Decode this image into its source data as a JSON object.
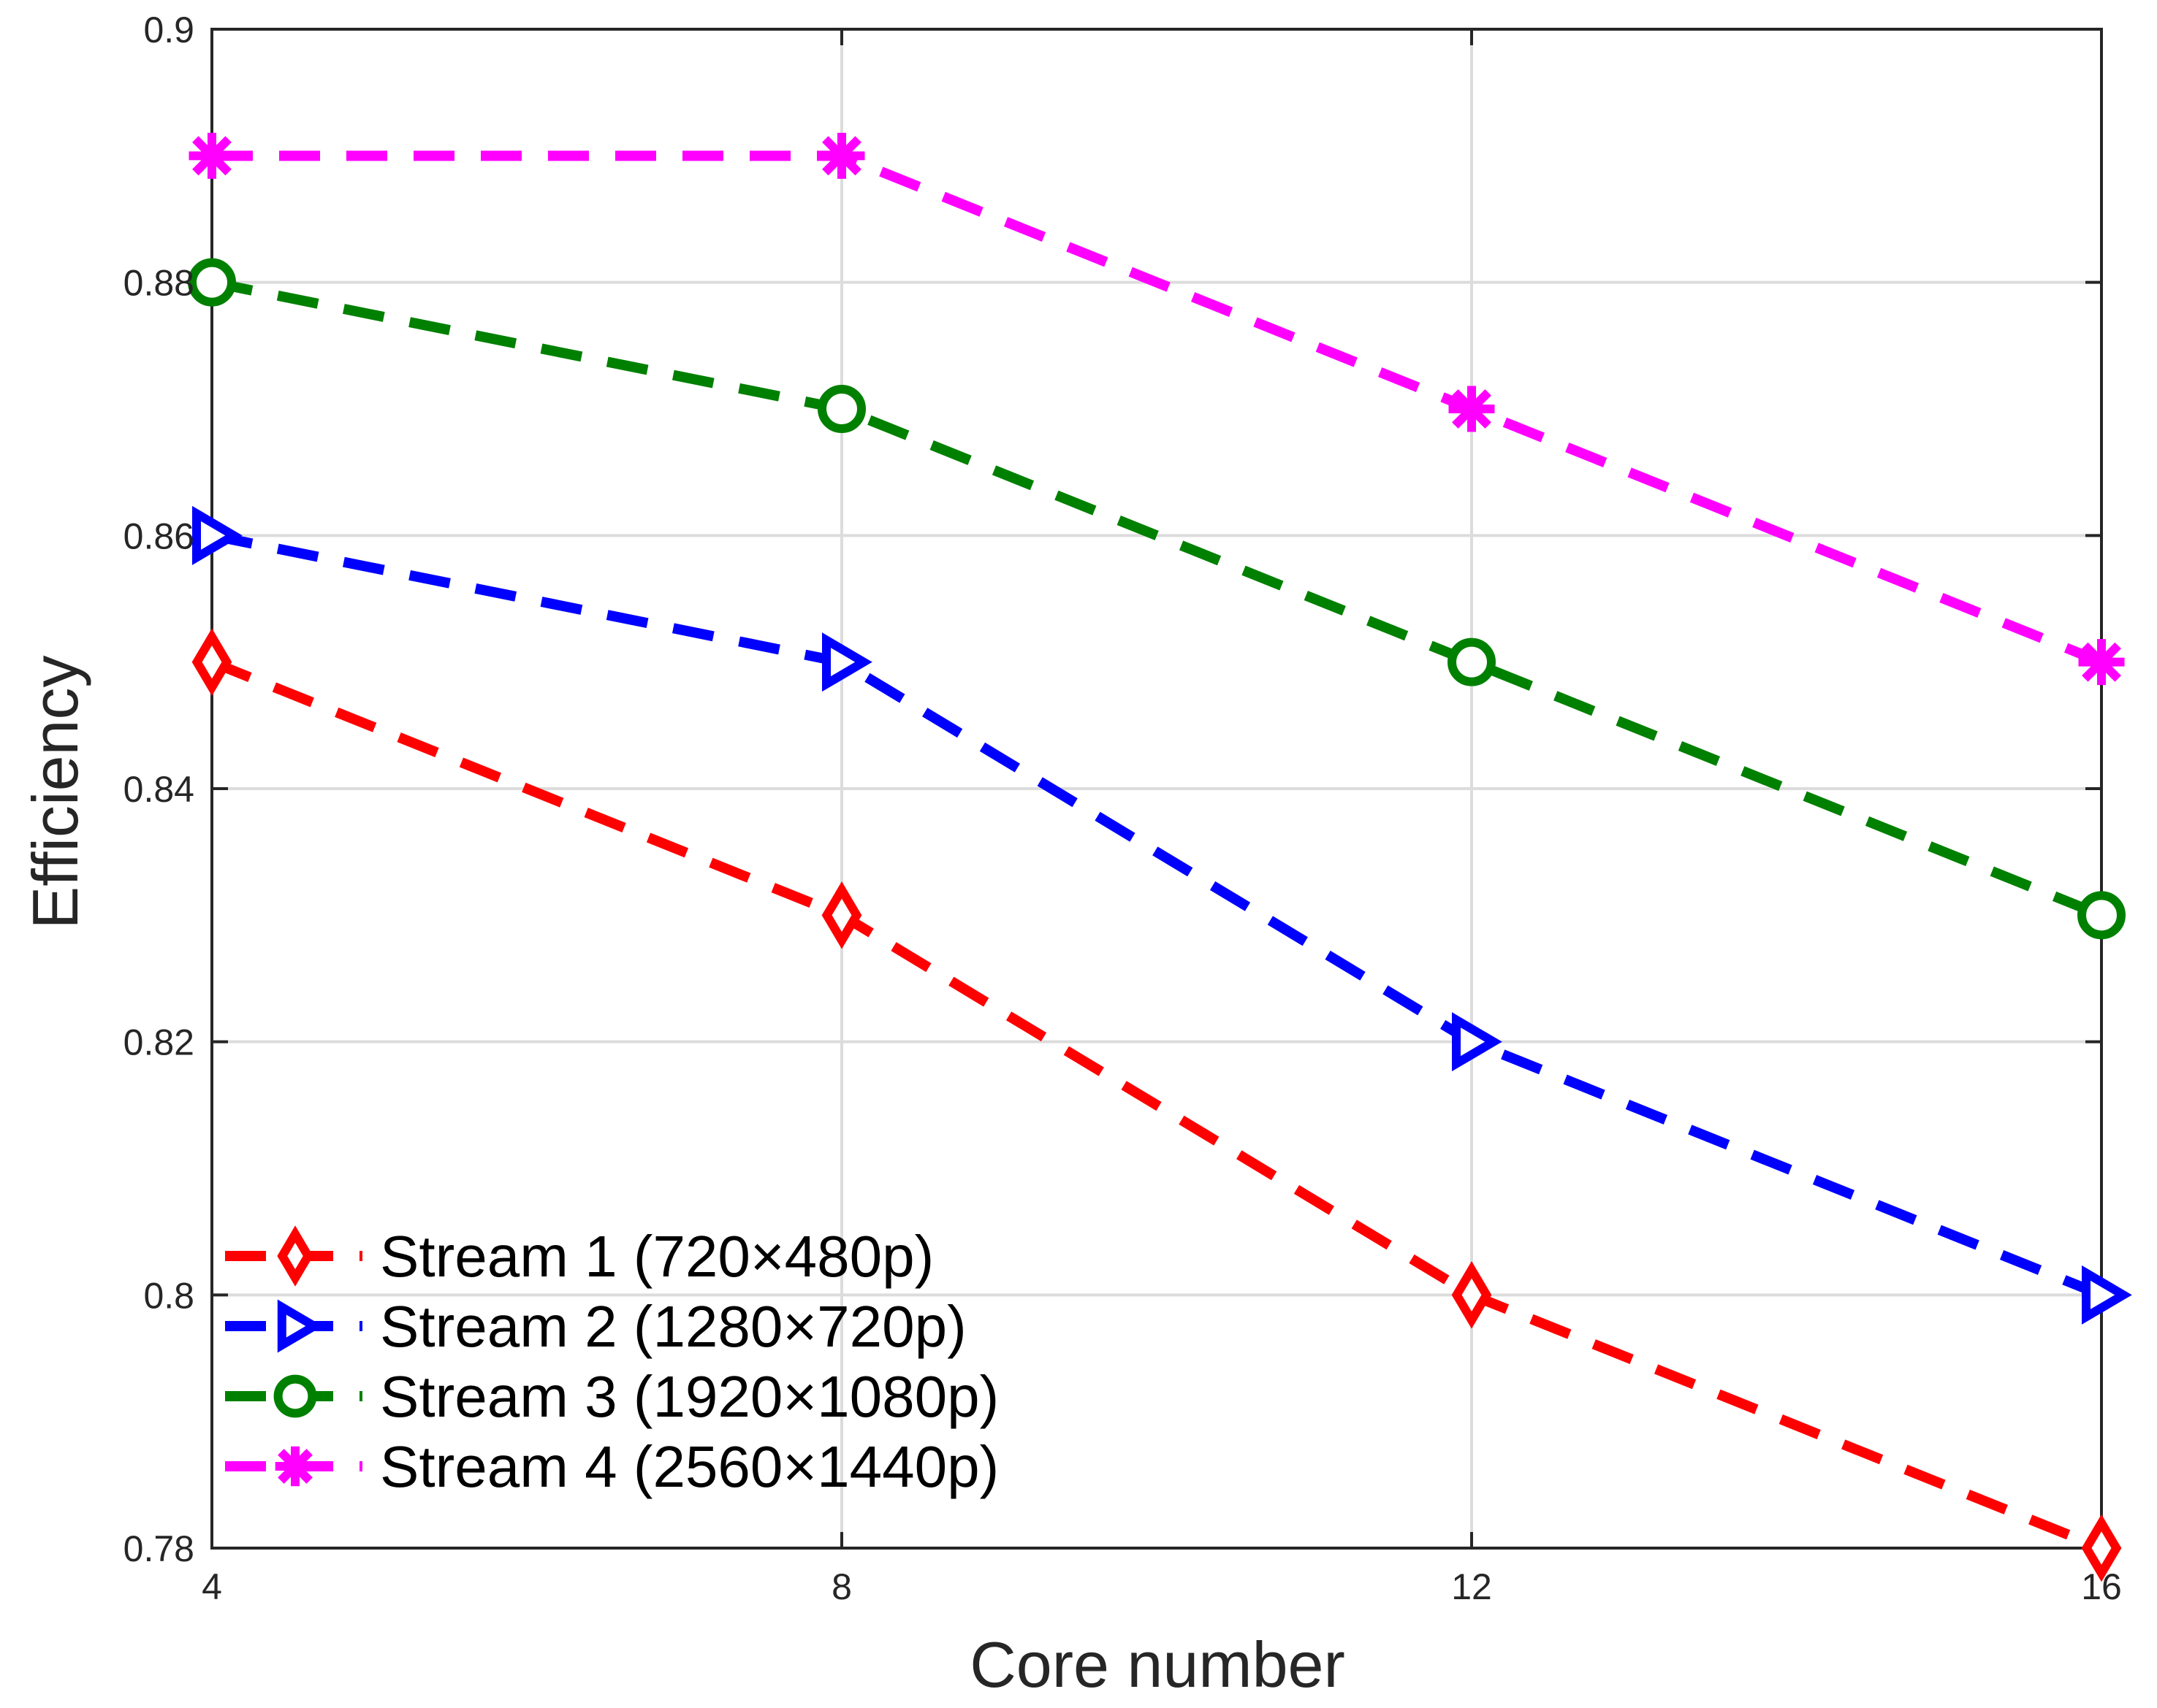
{
  "chart_data": {
    "type": "line",
    "title": "",
    "xlabel": "Core number",
    "ylabel": "Efficiency",
    "xlim": [
      4,
      16
    ],
    "ylim": [
      0.78,
      0.9
    ],
    "xticks": [
      4,
      8,
      12,
      16
    ],
    "xtick_labels": [
      "4",
      "8",
      "12",
      "16"
    ],
    "yticks": [
      0.78,
      0.8,
      0.82,
      0.84,
      0.86,
      0.88,
      0.9
    ],
    "ytick_labels": [
      "0.78",
      "0.8",
      "0.82",
      "0.84",
      "0.86",
      "0.88",
      "0.9"
    ],
    "grid": true,
    "legend_position": "bottom-left",
    "x": [
      4,
      8,
      12,
      16
    ],
    "series": [
      {
        "name": "Stream 1 (720×480p)",
        "color": "#ff0000",
        "marker": "diamond",
        "values": [
          0.85,
          0.83,
          0.8,
          0.78
        ]
      },
      {
        "name": "Stream 2 (1280×720p)",
        "color": "#0000ff",
        "marker": "triangle-right",
        "values": [
          0.86,
          0.85,
          0.82,
          0.8
        ]
      },
      {
        "name": "Stream 3 (1920×1080p)",
        "color": "#008000",
        "marker": "circle",
        "values": [
          0.88,
          0.87,
          0.85,
          0.83
        ]
      },
      {
        "name": "Stream 4 (2560×1440p)",
        "color": "#ff00ff",
        "marker": "asterisk",
        "values": [
          0.89,
          0.89,
          0.87,
          0.85
        ]
      }
    ]
  }
}
